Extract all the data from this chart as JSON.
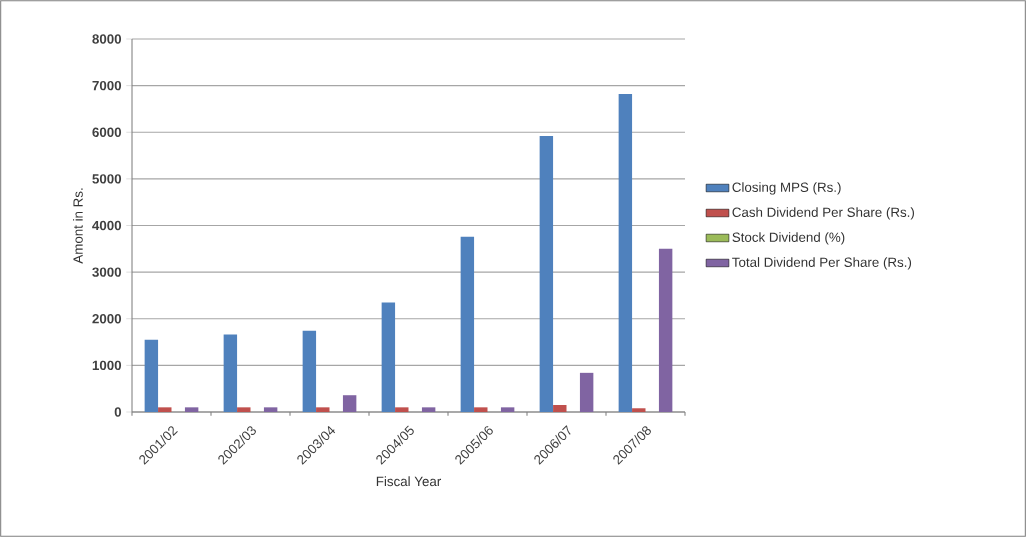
{
  "chart_data": {
    "type": "bar",
    "xlabel": "Fiscal Year",
    "ylabel": "Amont in Rs.",
    "categories": [
      "2001/02",
      "2002/03",
      "2003/04",
      "2004/05",
      "2005/06",
      "2006/07",
      "2007/08"
    ],
    "series": [
      {
        "name": "Closing MPS (Rs.)",
        "color": "#4f81bd",
        "values": [
          1550,
          1660,
          1740,
          2350,
          3760,
          5920,
          6820
        ]
      },
      {
        "name": "Cash Dividend Per Share (Rs.)",
        "color": "#c0504d",
        "values": [
          100,
          100,
          100,
          100,
          100,
          150,
          80
        ]
      },
      {
        "name": "Stock Dividend (%)",
        "color": "#9bbb59",
        "values": [
          0,
          0,
          0,
          0,
          0,
          0,
          0
        ]
      },
      {
        "name": "Total Dividend Per Share (Rs.)",
        "color": "#8064a2",
        "values": [
          100,
          100,
          360,
          100,
          100,
          840,
          3500
        ]
      }
    ],
    "ylim": [
      0,
      8000
    ],
    "yticks": [
      0,
      1000,
      2000,
      3000,
      4000,
      5000,
      6000,
      7000,
      8000
    ],
    "grid": "y",
    "legend": "right"
  }
}
